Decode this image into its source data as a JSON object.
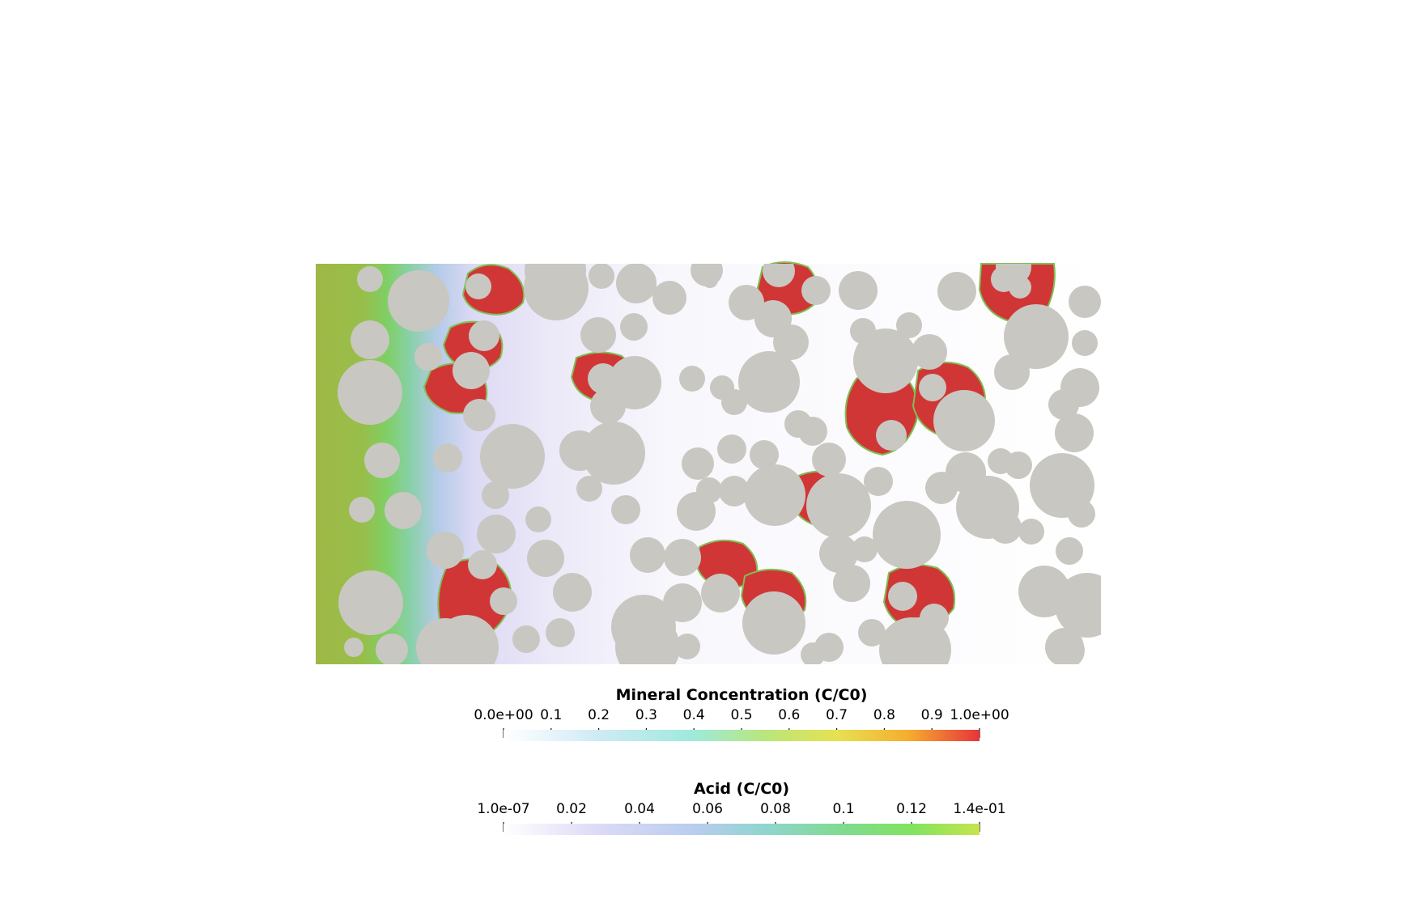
{
  "simulation": {
    "grain_color": "#c9c7c1",
    "mineral_color": "#d13636"
  },
  "colorbars": {
    "mineral": {
      "title": "Mineral Concentration (C/C0)",
      "tick_labels": [
        "0.0e+00",
        "0.1",
        "0.2",
        "0.3",
        "0.4",
        "0.5",
        "0.6",
        "0.7",
        "0.8",
        "0.9",
        "1.0e+00"
      ],
      "stops": [
        {
          "offset": 0.0,
          "color": "#ffffff"
        },
        {
          "offset": 0.2,
          "color": "#cfeaf5"
        },
        {
          "offset": 0.4,
          "color": "#9eeadb"
        },
        {
          "offset": 0.55,
          "color": "#b9e67a"
        },
        {
          "offset": 0.7,
          "color": "#e6e252"
        },
        {
          "offset": 0.85,
          "color": "#f6ad2e"
        },
        {
          "offset": 1.0,
          "color": "#e8343a"
        }
      ]
    },
    "acid": {
      "title": "Acid (C/C0)",
      "tick_labels": [
        "1.0e-07",
        "0.02",
        "0.04",
        "0.06",
        "0.08",
        "0.1",
        "0.12",
        "1.4e-01"
      ],
      "tick_values": [
        1e-07,
        0.02,
        0.04,
        0.06,
        0.08,
        0.1,
        0.12,
        0.14
      ],
      "range": [
        1e-07,
        0.14
      ],
      "stops": [
        {
          "offset": 0.0,
          "color": "#ffffff"
        },
        {
          "offset": 0.2,
          "color": "#dcdaf7"
        },
        {
          "offset": 0.4,
          "color": "#b9cdee"
        },
        {
          "offset": 0.55,
          "color": "#8fd5cf"
        },
        {
          "offset": 0.72,
          "color": "#7fdb8c"
        },
        {
          "offset": 0.86,
          "color": "#82e35f"
        },
        {
          "offset": 1.0,
          "color": "#c6e44e"
        }
      ]
    }
  }
}
